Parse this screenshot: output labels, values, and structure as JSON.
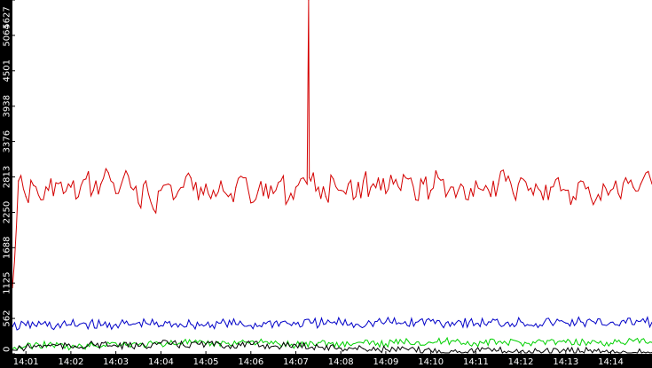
{
  "chart_data": {
    "type": "line",
    "title": "",
    "xlabel": "",
    "ylabel": "",
    "x_ticks": [
      "14:01",
      "14:02",
      "14:03",
      "14:04",
      "14:05",
      "14:06",
      "14:07",
      "14:08",
      "14:09",
      "14:10",
      "14:11",
      "14:12",
      "14:13",
      "14:14"
    ],
    "y_ticks": [
      0,
      562,
      1125,
      1688,
      2250,
      2813,
      3376,
      3938,
      4501,
      5064,
      5627
    ],
    "x_range": [
      "14:00:42",
      "14:14:55"
    ],
    "ylim": [
      0,
      5627
    ],
    "grid": false,
    "legend": "none",
    "background": "#ffffff",
    "axis_bar_color": "#000000",
    "series": [
      {
        "color": "#d40000",
        "x": [
          "14:00:42",
          "14:00:50",
          "14:01:00",
          "14:01:10",
          "14:01:20",
          "14:01:30",
          "14:01:40",
          "14:01:50",
          "14:02:00",
          "14:02:10",
          "14:02:20",
          "14:02:30",
          "14:02:40",
          "14:02:50",
          "14:03:00",
          "14:03:10",
          "14:03:20",
          "14:03:30",
          "14:03:40",
          "14:03:50",
          "14:04:00",
          "14:04:10",
          "14:04:20",
          "14:04:30",
          "14:04:40",
          "14:04:50",
          "14:05:00",
          "14:05:10",
          "14:05:20",
          "14:05:30",
          "14:05:40",
          "14:05:50",
          "14:06:00",
          "14:06:10",
          "14:06:20",
          "14:06:30",
          "14:06:40",
          "14:06:50",
          "14:07:00",
          "14:07:10",
          "14:07:15",
          "14:07:17",
          "14:07:18",
          "14:07:20",
          "14:07:30",
          "14:07:40",
          "14:07:50",
          "14:08:00",
          "14:08:10",
          "14:08:20",
          "14:08:30",
          "14:08:40",
          "14:08:50",
          "14:09:00",
          "14:09:10",
          "14:09:20",
          "14:09:30",
          "14:09:40",
          "14:09:50",
          "14:10:00",
          "14:10:10",
          "14:10:20",
          "14:10:30",
          "14:10:40",
          "14:10:50",
          "14:11:00",
          "14:11:10",
          "14:11:20",
          "14:11:30",
          "14:11:40",
          "14:11:50",
          "14:12:00",
          "14:12:10",
          "14:12:20",
          "14:12:30",
          "14:12:40",
          "14:12:50",
          "14:13:00",
          "14:13:10",
          "14:13:20",
          "14:13:30",
          "14:13:40",
          "14:13:50",
          "14:14:00",
          "14:14:10",
          "14:14:20",
          "14:14:30",
          "14:14:40",
          "14:14:50",
          "14:14:55"
        ],
        "values": [
          1050,
          2750,
          2500,
          2680,
          2450,
          2600,
          2720,
          2550,
          2650,
          2500,
          2780,
          2600,
          2700,
          2880,
          2550,
          2800,
          2650,
          2400,
          2750,
          2300,
          2600,
          2700,
          2500,
          2650,
          2800,
          2450,
          2700,
          2600,
          2750,
          2500,
          2650,
          2800,
          2400,
          2600,
          2700,
          2550,
          2750,
          2450,
          2650,
          2800,
          2700,
          5627,
          2800,
          2750,
          2650,
          2500,
          2780,
          2600,
          2700,
          2500,
          2750,
          2650,
          2800,
          2550,
          2700,
          2600,
          2780,
          2450,
          2700,
          2600,
          2800,
          2500,
          2650,
          2700,
          2450,
          2750,
          2600,
          2500,
          2700,
          2750,
          2550,
          2800,
          2600,
          2700,
          2450,
          2650,
          2800,
          2600,
          2500,
          2750,
          2650,
          2450,
          2700,
          2600,
          2550,
          2800,
          2650,
          2700,
          2900,
          2700
        ],
        "trace": "points"
      },
      {
        "color": "#0000c8",
        "x": [
          "14:00:42",
          "14:01:00",
          "14:01:20",
          "14:01:40",
          "14:02:00",
          "14:02:20",
          "14:02:40",
          "14:03:00",
          "14:03:20",
          "14:03:40",
          "14:04:00",
          "14:04:20",
          "14:04:40",
          "14:05:00",
          "14:05:20",
          "14:05:40",
          "14:06:00",
          "14:06:20",
          "14:06:40",
          "14:07:00",
          "14:07:20",
          "14:07:40",
          "14:08:00",
          "14:08:20",
          "14:08:40",
          "14:09:00",
          "14:09:20",
          "14:09:40",
          "14:10:00",
          "14:10:20",
          "14:10:40",
          "14:11:00",
          "14:11:20",
          "14:11:40",
          "14:12:00",
          "14:12:20",
          "14:12:40",
          "14:13:00",
          "14:13:20",
          "14:13:40",
          "14:14:00",
          "14:14:20",
          "14:14:40",
          "14:14:55"
        ],
        "values": [
          430,
          450,
          470,
          440,
          460,
          480,
          450,
          470,
          460,
          490,
          450,
          480,
          470,
          460,
          490,
          470,
          450,
          480,
          500,
          470,
          490,
          480,
          500,
          470,
          490,
          510,
          480,
          500,
          520,
          490,
          510,
          480,
          500,
          490,
          510,
          480,
          500,
          490,
          510,
          480,
          500,
          490,
          520,
          500
        ],
        "trace": "points"
      },
      {
        "color": "#00d000",
        "x": [
          "14:00:42",
          "14:01:00",
          "14:01:30",
          "14:02:00",
          "14:02:30",
          "14:03:00",
          "14:03:30",
          "14:04:00",
          "14:04:30",
          "14:05:00",
          "14:05:30",
          "14:06:00",
          "14:06:30",
          "14:07:00",
          "14:07:30",
          "14:08:00",
          "14:08:30",
          "14:09:00",
          "14:09:30",
          "14:10:00",
          "14:10:30",
          "14:11:00",
          "14:11:30",
          "14:12:00",
          "14:12:30",
          "14:13:00",
          "14:13:30",
          "14:14:00",
          "14:14:30",
          "14:14:55"
        ],
        "values": [
          80,
          120,
          150,
          100,
          130,
          170,
          140,
          160,
          190,
          150,
          170,
          200,
          160,
          140,
          180,
          150,
          170,
          160,
          200,
          180,
          210,
          160,
          190,
          170,
          200,
          180,
          190,
          170,
          200,
          180
        ],
        "trace": "points"
      },
      {
        "color": "#000000",
        "x": [
          "14:00:42",
          "14:01:00",
          "14:01:30",
          "14:02:00",
          "14:02:30",
          "14:03:00",
          "14:03:30",
          "14:04:00",
          "14:04:30",
          "14:05:00",
          "14:05:30",
          "14:06:00",
          "14:06:30",
          "14:07:00",
          "14:07:30",
          "14:08:00",
          "14:08:30",
          "14:09:00",
          "14:09:30",
          "14:10:00",
          "14:10:30",
          "14:11:00",
          "14:11:30",
          "14:12:00",
          "14:12:30",
          "14:13:00",
          "14:13:30",
          "14:14:00",
          "14:14:30",
          "14:14:55"
        ],
        "values": [
          60,
          100,
          140,
          110,
          150,
          130,
          120,
          170,
          140,
          160,
          130,
          150,
          120,
          140,
          110,
          90,
          80,
          70,
          60,
          50,
          40,
          60,
          50,
          40,
          30,
          40,
          50,
          30,
          20,
          20
        ],
        "trace": "points"
      }
    ]
  }
}
